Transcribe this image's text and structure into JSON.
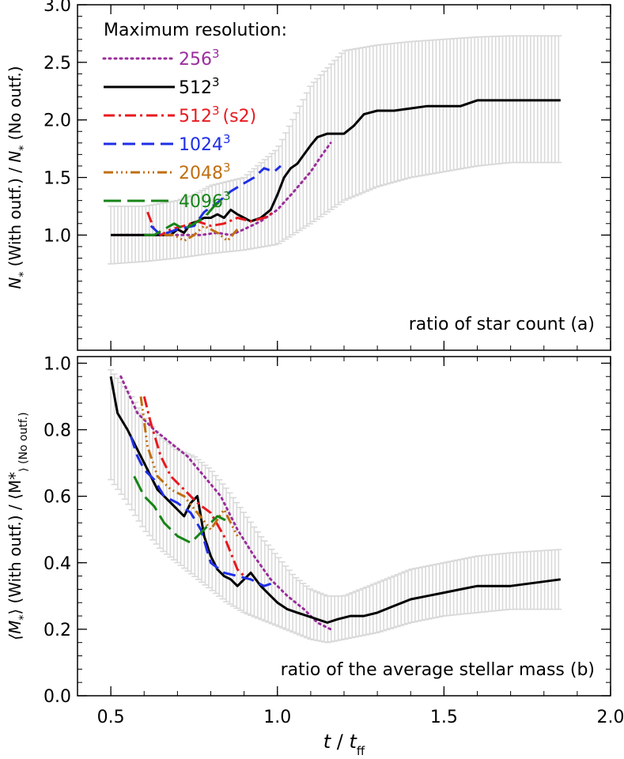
{
  "colors": {
    "errorbar": "#d9d9d9",
    "axis": "#000000",
    "res256": "#9b2d9b",
    "res512": "#000000",
    "res512s2": "#e8191f",
    "res1024": "#1f2ee6",
    "res2048": "#c06f10",
    "res4096": "#178417"
  },
  "chart_data": [
    {
      "panel": "a",
      "type": "line",
      "ylabel_parts": [
        "N",
        "*",
        " (With outf.) / ",
        "N",
        "*",
        " (No outf.)"
      ],
      "annotation": "ratio of star count (a)",
      "legend_title": "Maximum resolution:",
      "legend_placement": "top-left",
      "xlim": [
        0.4,
        2.0
      ],
      "ylim": [
        0.0,
        3.0
      ],
      "xticks": [
        0.5,
        1.0,
        1.5,
        2.0
      ],
      "xticklabels": [
        "0.5",
        "1.0",
        "1.5",
        "2.0"
      ],
      "yticks": [
        1.0,
        1.5,
        2.0,
        2.5,
        3.0
      ],
      "yticklabels": [
        "1.0",
        "1.5",
        "2.0",
        "2.5",
        "3.0"
      ],
      "errorbar_band": {
        "x": [
          0.5,
          0.6,
          0.7,
          0.75,
          0.8,
          0.9,
          1.0,
          1.1,
          1.2,
          1.3,
          1.4,
          1.5,
          1.6,
          1.7,
          1.85
        ],
        "low": [
          0.75,
          0.77,
          0.8,
          0.82,
          0.84,
          0.87,
          0.92,
          1.1,
          1.3,
          1.42,
          1.5,
          1.55,
          1.6,
          1.63,
          1.63
        ],
        "high": [
          1.25,
          1.25,
          1.3,
          1.35,
          1.43,
          1.5,
          1.75,
          2.3,
          2.6,
          2.65,
          2.68,
          2.7,
          2.72,
          2.73,
          2.73
        ]
      },
      "series": [
        {
          "name_base": "256",
          "name_sup": "3",
          "name_suffix": "",
          "color_key": "res256",
          "dash": "2,5",
          "x": [
            0.53,
            0.57,
            0.62,
            0.67,
            0.72,
            0.77,
            0.82,
            0.86,
            0.9,
            0.95,
            1.0,
            1.05,
            1.1,
            1.13,
            1.16
          ],
          "y": [
            1.0,
            1.0,
            1.0,
            1.0,
            1.0,
            1.0,
            1.02,
            1.0,
            1.05,
            1.12,
            1.22,
            1.38,
            1.55,
            1.68,
            1.8
          ]
        },
        {
          "name_base": "512",
          "name_sup": "3",
          "name_suffix": "",
          "color_key": "res512",
          "dash": "",
          "x": [
            0.5,
            0.52,
            0.55,
            0.6,
            0.65,
            0.68,
            0.7,
            0.72,
            0.74,
            0.76,
            0.78,
            0.8,
            0.82,
            0.84,
            0.86,
            0.88,
            0.9,
            0.92,
            0.95,
            0.98,
            1.0,
            1.02,
            1.04,
            1.06,
            1.08,
            1.1,
            1.12,
            1.15,
            1.2,
            1.23,
            1.26,
            1.3,
            1.35,
            1.4,
            1.45,
            1.5,
            1.55,
            1.6,
            1.7,
            1.85
          ],
          "y": [
            1.0,
            1.0,
            1.0,
            1.0,
            1.0,
            1.0,
            1.05,
            1.02,
            1.1,
            1.12,
            1.15,
            1.15,
            1.18,
            1.15,
            1.22,
            1.18,
            1.15,
            1.12,
            1.15,
            1.22,
            1.35,
            1.5,
            1.58,
            1.62,
            1.7,
            1.78,
            1.85,
            1.88,
            1.88,
            1.95,
            2.05,
            2.08,
            2.08,
            2.1,
            2.12,
            2.12,
            2.12,
            2.17,
            2.17,
            2.17
          ]
        },
        {
          "name_base": "512",
          "name_sup": "3",
          "name_suffix": "(s2)",
          "color_key": "res512s2",
          "dash": "14,5,3,5",
          "x": [
            0.61,
            0.63,
            0.65,
            0.68,
            0.72,
            0.76,
            0.8,
            0.84,
            0.88,
            0.92,
            0.96,
            0.99
          ],
          "y": [
            1.2,
            1.05,
            1.0,
            1.05,
            1.08,
            1.12,
            1.08,
            1.1,
            1.15,
            1.12,
            1.15,
            1.2
          ]
        },
        {
          "name_base": "1024",
          "name_sup": "3",
          "name_suffix": "",
          "color_key": "res1024",
          "dash": "16,8",
          "x": [
            0.62,
            0.65,
            0.7,
            0.75,
            0.78,
            0.82,
            0.86,
            0.9,
            0.93,
            0.96,
            0.99,
            1.01
          ],
          "y": [
            1.08,
            1.0,
            1.05,
            1.08,
            1.2,
            1.28,
            1.38,
            1.45,
            1.5,
            1.58,
            1.55,
            1.6
          ]
        },
        {
          "name_base": "2048",
          "name_sup": "3",
          "name_suffix": "",
          "color_key": "res2048",
          "dash": "12,4,2,4,2,4,2,4",
          "x": [
            0.66,
            0.69,
            0.72,
            0.75,
            0.78,
            0.82,
            0.85,
            0.88
          ],
          "y": [
            1.0,
            1.0,
            0.95,
            1.0,
            1.08,
            1.02,
            0.95,
            1.05
          ]
        },
        {
          "name_base": "4096",
          "name_sup": "3",
          "name_suffix": "",
          "color_key": "res4096",
          "dash": "22,8",
          "x": [
            0.6,
            0.63,
            0.66,
            0.69,
            0.72,
            0.75,
            0.78,
            0.81,
            0.84
          ],
          "y": [
            1.0,
            1.0,
            1.05,
            1.1,
            1.05,
            1.1,
            1.15,
            1.25,
            1.32
          ]
        }
      ]
    },
    {
      "panel": "b",
      "type": "line",
      "ylabel_parts": [
        "⟨M",
        "*",
        "⟩ (With outf.) / ⟨M",
        "*",
        "⟩ (No outf.)"
      ],
      "annotation": "ratio of the average stellar mass (b)",
      "xlabel_parts": [
        "t",
        " / ",
        "t",
        "ff"
      ],
      "xlim": [
        0.4,
        2.0
      ],
      "ylim": [
        0.0,
        1.02
      ],
      "xticks": [
        0.5,
        1.0,
        1.5,
        2.0
      ],
      "xticklabels": [
        "0.5",
        "1.0",
        "1.5",
        "2.0"
      ],
      "yticks": [
        0.0,
        0.2,
        0.4,
        0.6,
        0.8,
        1.0
      ],
      "yticklabels": [
        "0.0",
        "0.2",
        "0.4",
        "0.6",
        "0.8",
        "1.0"
      ],
      "errorbar_band": {
        "x": [
          0.5,
          0.55,
          0.6,
          0.65,
          0.7,
          0.75,
          0.8,
          0.85,
          0.9,
          0.95,
          1.0,
          1.05,
          1.1,
          1.15,
          1.2,
          1.25,
          1.3,
          1.4,
          1.5,
          1.6,
          1.7,
          1.85
        ],
        "low": [
          0.65,
          0.58,
          0.5,
          0.44,
          0.4,
          0.36,
          0.32,
          0.28,
          0.25,
          0.23,
          0.21,
          0.19,
          0.17,
          0.16,
          0.17,
          0.18,
          0.19,
          0.22,
          0.24,
          0.25,
          0.26,
          0.26
        ],
        "high": [
          0.98,
          0.92,
          0.84,
          0.78,
          0.74,
          0.72,
          0.68,
          0.62,
          0.55,
          0.48,
          0.42,
          0.36,
          0.32,
          0.3,
          0.3,
          0.32,
          0.34,
          0.38,
          0.4,
          0.42,
          0.43,
          0.44
        ]
      },
      "series": [
        {
          "name_base": "256",
          "color_key": "res256",
          "dash": "2,5",
          "x": [
            0.53,
            0.58,
            0.63,
            0.68,
            0.73,
            0.78,
            0.83,
            0.88,
            0.93,
            0.98,
            1.03,
            1.08,
            1.12,
            1.16
          ],
          "y": [
            0.96,
            0.85,
            0.8,
            0.76,
            0.72,
            0.66,
            0.6,
            0.5,
            0.42,
            0.35,
            0.3,
            0.26,
            0.22,
            0.2
          ]
        },
        {
          "name_base": "512",
          "color_key": "res512",
          "dash": "",
          "x": [
            0.5,
            0.52,
            0.55,
            0.58,
            0.6,
            0.62,
            0.64,
            0.66,
            0.68,
            0.7,
            0.72,
            0.74,
            0.76,
            0.78,
            0.8,
            0.82,
            0.84,
            0.86,
            0.88,
            0.9,
            0.92,
            0.95,
            0.98,
            1.0,
            1.03,
            1.06,
            1.09,
            1.12,
            1.15,
            1.18,
            1.22,
            1.26,
            1.3,
            1.35,
            1.4,
            1.45,
            1.5,
            1.55,
            1.6,
            1.7,
            1.85
          ],
          "y": [
            0.96,
            0.85,
            0.8,
            0.74,
            0.7,
            0.66,
            0.62,
            0.6,
            0.58,
            0.56,
            0.54,
            0.58,
            0.6,
            0.48,
            0.42,
            0.38,
            0.36,
            0.35,
            0.33,
            0.35,
            0.37,
            0.33,
            0.3,
            0.28,
            0.26,
            0.25,
            0.24,
            0.23,
            0.22,
            0.23,
            0.24,
            0.24,
            0.25,
            0.27,
            0.29,
            0.3,
            0.31,
            0.32,
            0.33,
            0.33,
            0.35
          ]
        },
        {
          "name_base": "512 (s2)",
          "color_key": "res512s2",
          "dash": "14,5,3,5",
          "x": [
            0.6,
            0.62,
            0.65,
            0.68,
            0.72,
            0.76,
            0.8,
            0.84,
            0.88,
            0.9
          ],
          "y": [
            0.9,
            0.82,
            0.72,
            0.66,
            0.62,
            0.58,
            0.55,
            0.48,
            0.38,
            0.36
          ]
        },
        {
          "name_base": "1024",
          "color_key": "res1024",
          "dash": "16,8",
          "x": [
            0.56,
            0.58,
            0.6,
            0.63,
            0.66,
            0.7,
            0.74,
            0.77,
            0.8,
            0.84,
            0.88,
            0.92,
            0.96,
            0.99
          ],
          "y": [
            0.78,
            0.72,
            0.68,
            0.65,
            0.6,
            0.58,
            0.55,
            0.5,
            0.4,
            0.37,
            0.36,
            0.35,
            0.33,
            0.34
          ]
        },
        {
          "name_base": "2048",
          "color_key": "res2048",
          "dash": "12,4,2,4,2,4,2,4",
          "x": [
            0.59,
            0.61,
            0.64,
            0.68,
            0.72,
            0.76,
            0.8,
            0.84,
            0.88
          ],
          "y": [
            0.9,
            0.75,
            0.66,
            0.62,
            0.6,
            0.55,
            0.5,
            0.56,
            0.48
          ]
        },
        {
          "name_base": "4096",
          "color_key": "res4096",
          "dash": "22,8",
          "x": [
            0.57,
            0.6,
            0.63,
            0.66,
            0.7,
            0.74,
            0.78,
            0.82,
            0.86
          ],
          "y": [
            0.66,
            0.6,
            0.57,
            0.52,
            0.48,
            0.46,
            0.5,
            0.54,
            0.52
          ]
        }
      ]
    }
  ]
}
